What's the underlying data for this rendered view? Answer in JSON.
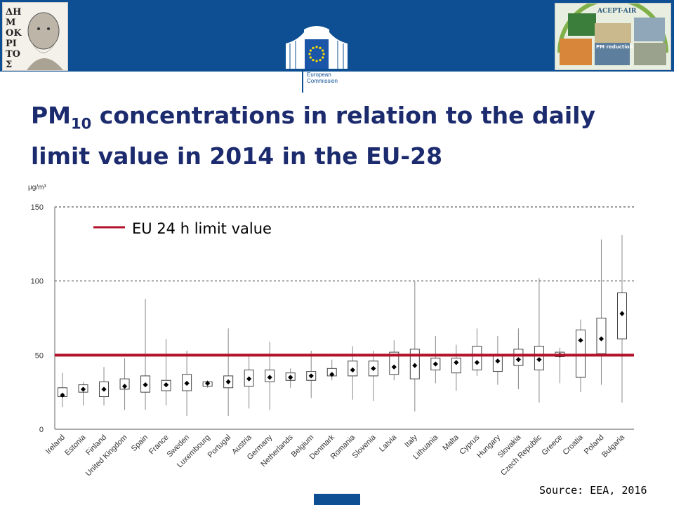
{
  "header": {
    "left_logo_text": "ΔΗΜΟΚΡΙΤΟΣ",
    "ec_logo_lines": [
      "European",
      "Commission"
    ],
    "right_logo_title": "ACEPT-AIR",
    "right_logo_subtitle": "PM reduction"
  },
  "slide": {
    "title_prefix": "PM",
    "title_subscript": "10",
    "title_rest": " concentrations in relation to the daily limit value in 2014 in the EU-28",
    "source": "Source: EEA, 2016"
  },
  "chart_data": {
    "type": "boxplot",
    "ylabel": "µg/m³",
    "ylim": [
      0,
      150
    ],
    "yticks": [
      0,
      50,
      100,
      150
    ],
    "limit_value": 50,
    "legend": {
      "label": "EU 24 h limit value",
      "position": "top-left",
      "color": "#b3112b"
    },
    "colors": {
      "limit_line": "#b3112b",
      "box": "#444444",
      "grid": "#333333"
    },
    "categories": [
      "Ireland",
      "Estonia",
      "Finland",
      "United Kingdom",
      "Spain",
      "France",
      "Sweden",
      "Luxembourg",
      "Portugal",
      "Austria",
      "Germany",
      "Netherlands",
      "Belgium",
      "Denmark",
      "Romania",
      "Slovenia",
      "Latvia",
      "Italy",
      "Lithuania",
      "Malta",
      "Cyprus",
      "Hungary",
      "Slovakia",
      "Czech Republic",
      "Greece",
      "Croatia",
      "Poland",
      "Bulgaria"
    ],
    "series": [
      {
        "min": 15,
        "q1": 22,
        "median": 23,
        "q3": 28,
        "max": 38
      },
      {
        "min": 16,
        "q1": 25,
        "median": 27,
        "q3": 30,
        "max": 32
      },
      {
        "min": 16,
        "q1": 22,
        "median": 27,
        "q3": 32,
        "max": 42
      },
      {
        "min": 13,
        "q1": 27,
        "median": 29,
        "q3": 34,
        "max": 48
      },
      {
        "min": 13,
        "q1": 25,
        "median": 30,
        "q3": 36,
        "max": 88
      },
      {
        "min": 16,
        "q1": 26,
        "median": 30,
        "q3": 33,
        "max": 61
      },
      {
        "min": 9,
        "q1": 26,
        "median": 31,
        "q3": 37,
        "max": 53
      },
      {
        "min": 28,
        "q1": 29,
        "median": 31,
        "q3": 32,
        "max": 33
      },
      {
        "min": 9,
        "q1": 28,
        "median": 32,
        "q3": 36,
        "max": 68
      },
      {
        "min": 14,
        "q1": 29,
        "median": 34,
        "q3": 40,
        "max": 51
      },
      {
        "min": 13,
        "q1": 32,
        "median": 35,
        "q3": 40,
        "max": 59
      },
      {
        "min": 28,
        "q1": 33,
        "median": 35,
        "q3": 38,
        "max": 41
      },
      {
        "min": 21,
        "q1": 33,
        "median": 36,
        "q3": 39,
        "max": 53
      },
      {
        "min": 33,
        "q1": 36,
        "median": 37,
        "q3": 41,
        "max": 47
      },
      {
        "min": 20,
        "q1": 36,
        "median": 40,
        "q3": 46,
        "max": 56
      },
      {
        "min": 19,
        "q1": 36,
        "median": 41,
        "q3": 46,
        "max": 53
      },
      {
        "min": 33,
        "q1": 37,
        "median": 42,
        "q3": 52,
        "max": 60
      },
      {
        "min": 12,
        "q1": 34,
        "median": 43,
        "q3": 54,
        "max": 100
      },
      {
        "min": 31,
        "q1": 40,
        "median": 44,
        "q3": 48,
        "max": 63
      },
      {
        "min": 26,
        "q1": 38,
        "median": 45,
        "q3": 48,
        "max": 57
      },
      {
        "min": 36,
        "q1": 40,
        "median": 45,
        "q3": 56,
        "max": 68
      },
      {
        "min": 30,
        "q1": 39,
        "median": 46,
        "q3": 50,
        "max": 63
      },
      {
        "min": 27,
        "q1": 43,
        "median": 47,
        "q3": 54,
        "max": 68
      },
      {
        "min": 18,
        "q1": 40,
        "median": 47,
        "q3": 56,
        "max": 102
      },
      {
        "min": 31,
        "q1": 49,
        "median": 50,
        "q3": 52,
        "max": 55
      },
      {
        "min": 25,
        "q1": 35,
        "median": 60,
        "q3": 67,
        "max": 74
      },
      {
        "min": 30,
        "q1": 51,
        "median": 61,
        "q3": 75,
        "max": 128
      },
      {
        "min": 18,
        "q1": 61,
        "median": 78,
        "q3": 92,
        "max": 131
      }
    ]
  }
}
